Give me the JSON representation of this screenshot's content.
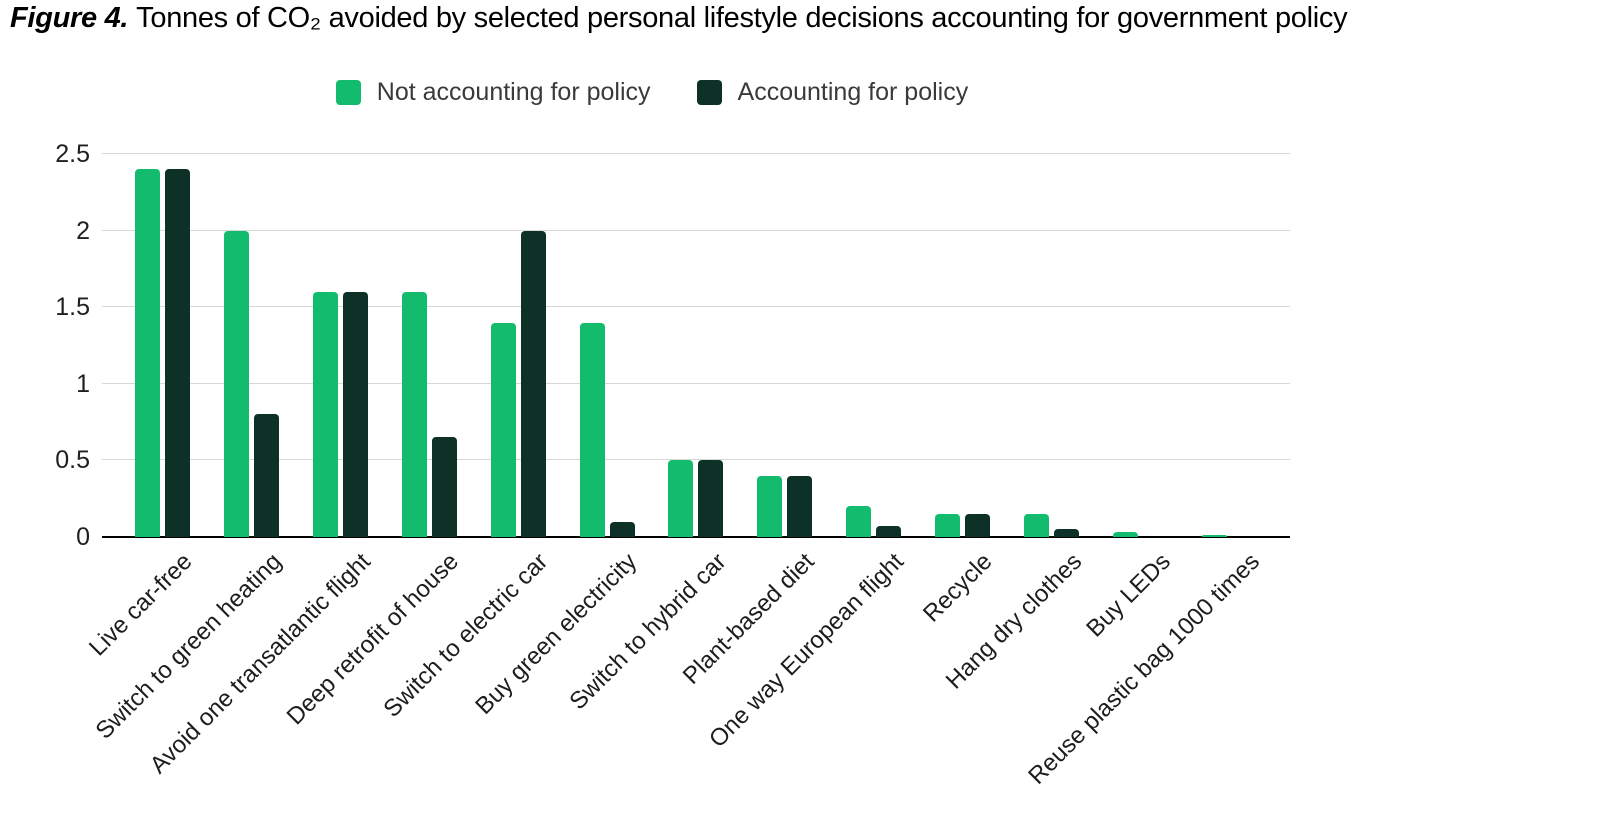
{
  "title": {
    "prefix": "Figure 4.",
    "text": "Tonnes of CO₂ avoided by selected personal lifestyle decisions accounting for government policy"
  },
  "chart_data": {
    "type": "bar",
    "title": "Tonnes of CO₂ avoided by selected personal lifestyle decisions accounting for government policy",
    "categories": [
      "Live car-free",
      "Switch to green heating",
      "Avoid one transatlantic flight",
      "Deep retrofit of house",
      "Switch to electric car",
      "Buy green electricity",
      "Switch to hybrid car",
      "Plant-based diet",
      "One way European flight",
      "Recycle",
      "Hang dry clothes",
      "Buy LEDs",
      "Reuse plastic bag 1000 times"
    ],
    "series": [
      {
        "name": "Not accounting for policy",
        "color": "#13bb6c",
        "values": [
          2.4,
          2.0,
          1.6,
          1.6,
          1.4,
          1.4,
          0.5,
          0.4,
          0.2,
          0.15,
          0.15,
          0.03,
          0.01
        ]
      },
      {
        "name": "Accounting for policy",
        "color": "#0d3027",
        "values": [
          2.4,
          0.8,
          1.6,
          0.65,
          2.0,
          0.1,
          0.5,
          0.4,
          0.07,
          0.15,
          0.05,
          0,
          0
        ]
      }
    ],
    "xlabel": "",
    "ylabel": "",
    "ylim": [
      0,
      2.5
    ],
    "yticks": [
      0,
      0.5,
      1,
      1.5,
      2,
      2.5
    ],
    "ytick_labels": [
      "0",
      "0.5",
      "1",
      "1.5",
      "2",
      "2.5"
    ],
    "grid": true,
    "legend_position": "top",
    "axis_color": "#000000",
    "gridline_color": "#d7d7d7"
  }
}
